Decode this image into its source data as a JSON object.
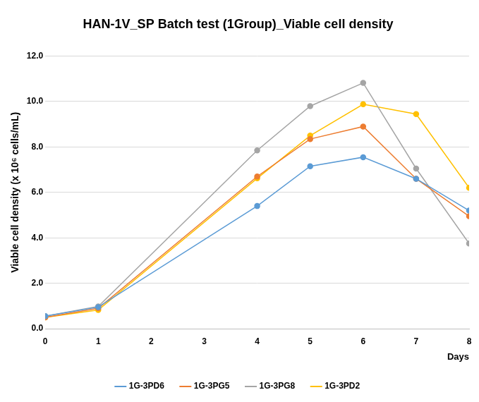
{
  "chart_data": {
    "type": "line",
    "title": "HAN-1V_SP Batch test (1Group)_Viable cell density",
    "x_label": "Days",
    "y_label": "Viable cell density (x 10⁶ cells/mL)",
    "x": [
      0,
      1,
      4,
      5,
      6,
      7,
      8
    ],
    "series": [
      {
        "name": "1G-3PD6",
        "color": "#5b9bd5",
        "values": [
          0.55,
          0.95,
          5.4,
          7.15,
          7.55,
          6.6,
          5.2
        ]
      },
      {
        "name": "1G-3PG5",
        "color": "#ed7d31",
        "values": [
          0.5,
          0.9,
          6.7,
          8.35,
          8.9,
          6.6,
          4.95
        ]
      },
      {
        "name": "1G-3PG8",
        "color": "#a5a5a5",
        "values": [
          0.55,
          0.98,
          7.85,
          9.8,
          10.82,
          7.05,
          3.75
        ]
      },
      {
        "name": "1G-3PD2",
        "color": "#ffc000",
        "values": [
          0.5,
          0.82,
          6.62,
          8.5,
          9.88,
          9.45,
          6.2
        ]
      }
    ],
    "xlim": [
      0,
      8
    ],
    "xticks": [
      0,
      1,
      2,
      3,
      4,
      5,
      6,
      7,
      8
    ],
    "ylim": [
      0,
      12
    ],
    "yticks": [
      {
        "value": 0,
        "label": "0.0"
      },
      {
        "value": 2,
        "label": "2.0"
      },
      {
        "value": 4,
        "label": "4.0"
      },
      {
        "value": 6,
        "label": "6.0"
      },
      {
        "value": 8,
        "label": "8.0"
      },
      {
        "value": 10,
        "label": "10.0"
      },
      {
        "value": 12,
        "label": "12.0"
      }
    ],
    "grid": true,
    "legend": "bottom",
    "marker": "circle"
  }
}
